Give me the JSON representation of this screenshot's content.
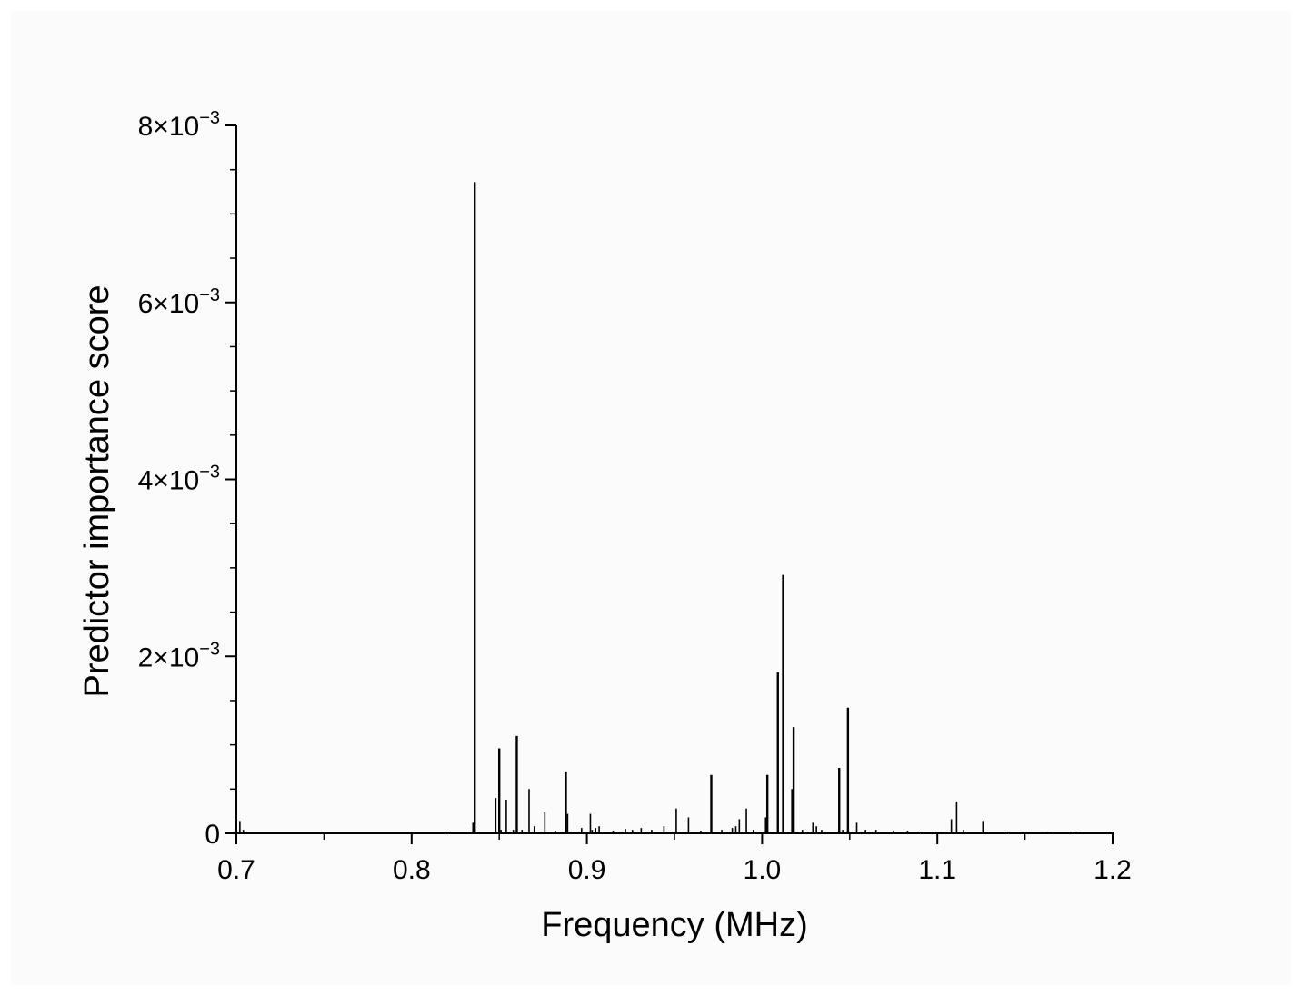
{
  "chart_data": {
    "type": "bar",
    "title": "",
    "xlabel": "Frequency (MHz)",
    "ylabel": "Predictor importance score",
    "xlim": [
      0.7,
      1.2
    ],
    "ylim": [
      0,
      0.008
    ],
    "x_ticks": [
      {
        "value": 0.7,
        "label": "0.7"
      },
      {
        "value": 0.8,
        "label": "0.8"
      },
      {
        "value": 0.9,
        "label": "0.9"
      },
      {
        "value": 1.0,
        "label": "1.0"
      },
      {
        "value": 1.1,
        "label": "1.1"
      },
      {
        "value": 1.2,
        "label": "1.2"
      }
    ],
    "y_ticks": [
      {
        "value": 0,
        "mantissa": "0",
        "exponent": ""
      },
      {
        "value": 0.002,
        "mantissa": "2×10",
        "exponent": "−3"
      },
      {
        "value": 0.004,
        "mantissa": "4×10",
        "exponent": "−3"
      },
      {
        "value": 0.006,
        "mantissa": "6×10",
        "exponent": "−3"
      },
      {
        "value": 0.008,
        "mantissa": "8×10",
        "exponent": "−3"
      }
    ],
    "grid": false,
    "series": [
      {
        "color": "#000000",
        "x": [
          0.702,
          0.704,
          0.819,
          0.835,
          0.836,
          0.848,
          0.85,
          0.851,
          0.854,
          0.858,
          0.86,
          0.863,
          0.867,
          0.87,
          0.876,
          0.882,
          0.888,
          0.889,
          0.897,
          0.902,
          0.903,
          0.905,
          0.907,
          0.915,
          0.922,
          0.926,
          0.931,
          0.937,
          0.944,
          0.951,
          0.958,
          0.965,
          0.971,
          0.977,
          0.983,
          0.985,
          0.987,
          0.991,
          0.995,
          1.002,
          1.003,
          1.009,
          1.012,
          1.017,
          1.018,
          1.023,
          1.029,
          1.031,
          1.034,
          1.044,
          1.046,
          1.049,
          1.054,
          1.059,
          1.065,
          1.075,
          1.083,
          1.091,
          1.099,
          1.108,
          1.111,
          1.115,
          1.126,
          1.14,
          1.163,
          1.179
        ],
        "values": [
          0.00014,
          4e-05,
          2e-05,
          0.00012,
          0.00736,
          0.0004,
          0.00096,
          4e-05,
          0.00038,
          4e-05,
          0.0011,
          4e-05,
          0.0005,
          8e-05,
          0.00024,
          3e-05,
          0.0007,
          0.00022,
          6e-05,
          0.00022,
          4e-05,
          6e-05,
          8e-05,
          3e-05,
          5e-05,
          4e-05,
          6e-05,
          4e-05,
          8e-05,
          0.00028,
          0.00018,
          3e-05,
          0.00066,
          4e-05,
          6e-05,
          8e-05,
          0.00016,
          0.00028,
          4e-05,
          0.00018,
          0.00066,
          0.00182,
          0.00292,
          0.0005,
          0.0012,
          4e-05,
          0.00012,
          8e-05,
          4e-05,
          0.00074,
          4e-05,
          0.00142,
          0.00012,
          4e-05,
          4e-05,
          3e-05,
          3e-05,
          2e-05,
          2e-05,
          0.00016,
          0.00036,
          4e-05,
          0.00014,
          2e-05,
          2e-05,
          2e-05
        ]
      }
    ]
  }
}
